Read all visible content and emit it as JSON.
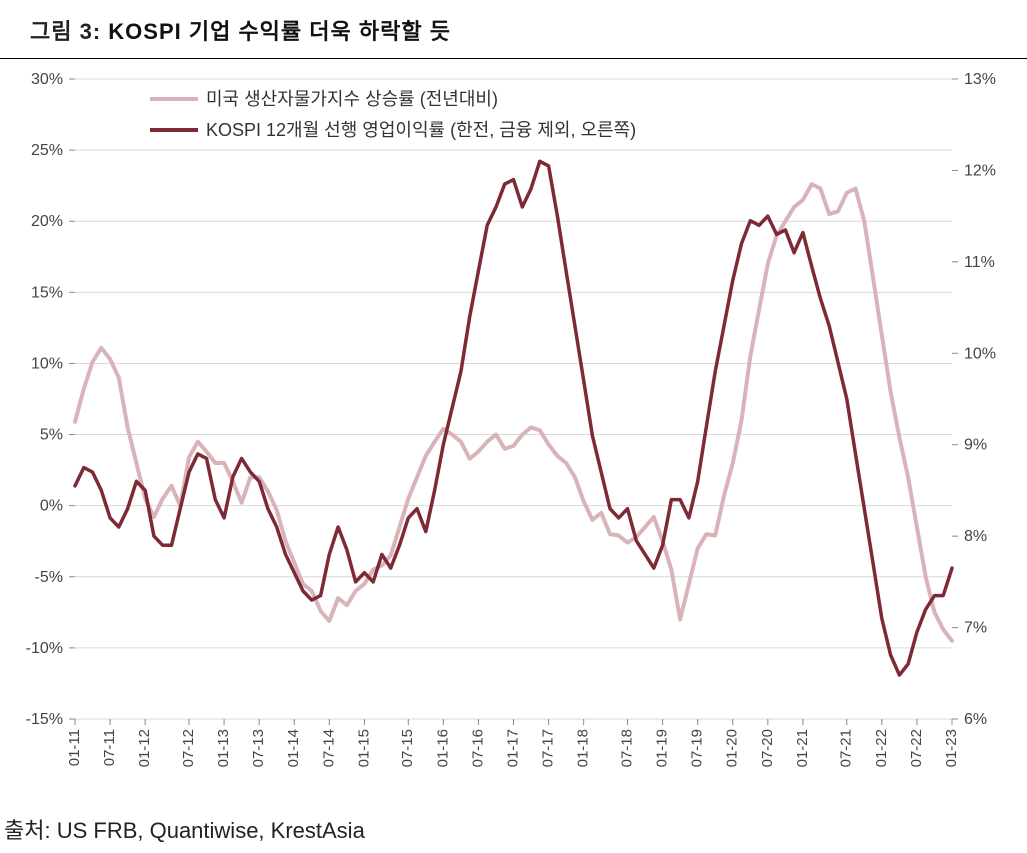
{
  "title": {
    "prefix": "그림 3: ",
    "main": "KOSPI 기업 수익률 더욱 하락할 듯"
  },
  "source": "출처: US FRB, Quantiwise, KrestAsia",
  "chart": {
    "type": "line-dual-axis",
    "background_color": "#ffffff",
    "grid_color": "#d9d9d9",
    "axis_text_color": "#444444",
    "legend_font_size": 18,
    "axis_font_size": 16,
    "left_axis": {
      "min": -15,
      "max": 30,
      "step": 5,
      "suffix": "%"
    },
    "right_axis": {
      "min": 6,
      "max": 13,
      "step": 1,
      "suffix": "%"
    },
    "x_ticks": [
      "01-11",
      "07-11",
      "01-12",
      "07-12",
      "01-13",
      "07-13",
      "01-14",
      "07-14",
      "01-15",
      "07-15",
      "01-16",
      "07-16",
      "01-17",
      "07-17",
      "01-18",
      "07-18",
      "01-19",
      "07-19",
      "01-20",
      "07-20",
      "01-21",
      "07-21",
      "01-22",
      "07-22",
      "01-23"
    ],
    "series1": {
      "label": "미국 생산자물가지수 상승률 (전년대비)",
      "color": "#d9b3b8",
      "line_width": 4,
      "axis": "left",
      "data": [
        5.9,
        8.2,
        10.1,
        11.1,
        10.3,
        9.0,
        5.5,
        3.0,
        0.5,
        -0.8,
        0.5,
        1.4,
        0.0,
        3.4,
        4.5,
        3.8,
        3.0,
        3.0,
        1.7,
        0.2,
        2.0,
        2.0,
        1.0,
        -0.3,
        -2.5,
        -4.0,
        -5.5,
        -6.0,
        -7.4,
        -8.1,
        -6.5,
        -7.0,
        -6.0,
        -5.5,
        -4.5,
        -4.2,
        -3.5,
        -1.5,
        0.5,
        2.0,
        3.5,
        4.5,
        5.4,
        5.0,
        4.5,
        3.3,
        3.8,
        4.5,
        5.0,
        4.0,
        4.2,
        5.0,
        5.5,
        5.3,
        4.3,
        3.5,
        3.0,
        2.0,
        0.3,
        -1.0,
        -0.5,
        -2.0,
        -2.1,
        -2.6,
        -2.2,
        -1.5,
        -0.8,
        -2.5,
        -4.5,
        -8.0,
        -5.5,
        -3.0,
        -2.0,
        -2.1,
        0.7,
        3.0,
        6.0,
        10.5,
        13.8,
        17.0,
        19.0,
        20.0,
        21.0,
        21.5,
        22.6,
        22.3,
        20.5,
        20.7,
        22.0,
        22.3,
        20.0,
        16.0,
        12.0,
        8.0,
        4.8,
        2.0,
        -1.5,
        -5.0,
        -7.5,
        -8.7,
        -9.5
      ]
    },
    "series2": {
      "label": "KOSPI 12개월 선행 영업이익률 (한전, 금융 제외, 오른쪽)",
      "color": "#7d2a35",
      "line_width": 3.5,
      "axis": "right",
      "data": [
        8.55,
        8.75,
        8.7,
        8.5,
        8.2,
        8.1,
        8.3,
        8.6,
        8.5,
        8.0,
        7.9,
        7.9,
        8.3,
        8.7,
        8.9,
        8.85,
        8.4,
        8.2,
        8.65,
        8.85,
        8.7,
        8.6,
        8.3,
        8.1,
        7.8,
        7.6,
        7.4,
        7.3,
        7.35,
        7.8,
        8.1,
        7.85,
        7.5,
        7.6,
        7.5,
        7.8,
        7.65,
        7.9,
        8.2,
        8.3,
        8.05,
        8.5,
        9.0,
        9.4,
        9.8,
        10.4,
        10.9,
        11.4,
        11.6,
        11.85,
        11.9,
        11.6,
        11.8,
        12.1,
        12.05,
        11.5,
        10.9,
        10.3,
        9.7,
        9.1,
        8.7,
        8.3,
        8.2,
        8.3,
        7.95,
        7.8,
        7.65,
        7.9,
        8.4,
        8.4,
        8.2,
        8.6,
        9.2,
        9.8,
        10.3,
        10.8,
        11.2,
        11.45,
        11.4,
        11.5,
        11.3,
        11.35,
        11.1,
        11.32,
        10.95,
        10.6,
        10.3,
        9.9,
        9.5,
        8.9,
        8.3,
        7.7,
        7.1,
        6.7,
        6.48,
        6.6,
        6.95,
        7.2,
        7.35,
        7.35,
        7.65
      ]
    }
  }
}
